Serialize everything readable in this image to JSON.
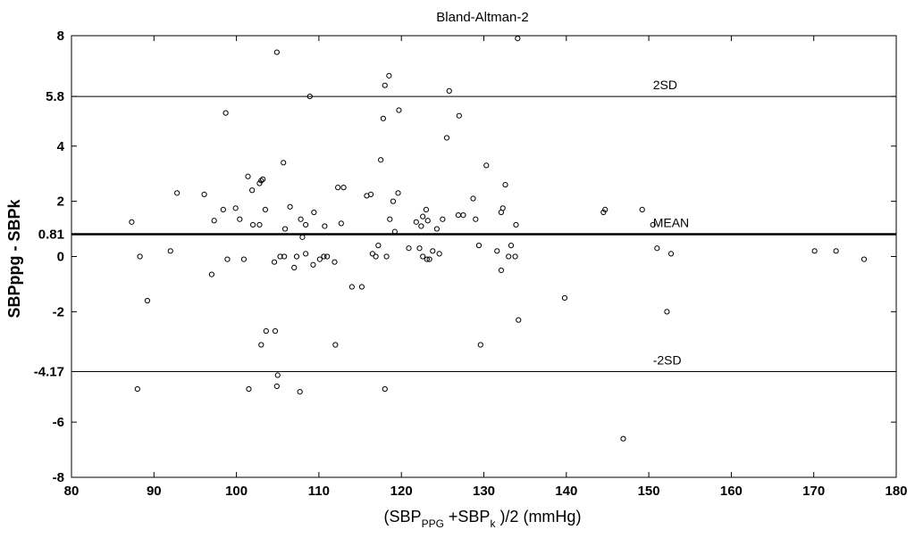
{
  "chart_data": {
    "type": "scatter",
    "title": "Bland-Altman-2",
    "ylabel": "SBPppg - SBPk",
    "xlabel": {
      "prefix": "(SBP",
      "sub1": "PPG",
      "middle": " +SBP",
      "sub2": "k",
      "suffix": " )/2  (mmHg)"
    },
    "xlim": [
      80,
      180
    ],
    "ylim": [
      -8,
      8
    ],
    "xticks": [
      80,
      90,
      100,
      110,
      120,
      130,
      140,
      150,
      160,
      170,
      180
    ],
    "yticks": [
      {
        "value": 8,
        "label": "8"
      },
      {
        "value": 5.8,
        "label": "5.8"
      },
      {
        "value": 4,
        "label": "4"
      },
      {
        "value": 2,
        "label": "2"
      },
      {
        "value": 0.81,
        "label": "0.81"
      },
      {
        "value": 0,
        "label": "0"
      },
      {
        "value": -2,
        "label": "-2"
      },
      {
        "value": -4.17,
        "label": "-4.17"
      },
      {
        "value": -6,
        "label": "-6"
      },
      {
        "value": -8,
        "label": "-8"
      }
    ],
    "reference_lines": [
      {
        "value": 5.8,
        "label": "2SD",
        "label_x": 150.5
      },
      {
        "value": 0.81,
        "label": "MEAN",
        "label_x": 150.5
      },
      {
        "value": -4.17,
        "label": "-2SD",
        "label_x": 150.5
      }
    ],
    "grid": false,
    "marker": "open-circle",
    "points": [
      [
        87.3,
        1.25
      ],
      [
        88.0,
        -4.8
      ],
      [
        88.3,
        0.0
      ],
      [
        89.2,
        -1.6
      ],
      [
        92.0,
        0.2
      ],
      [
        92.8,
        2.3
      ],
      [
        96.1,
        2.25
      ],
      [
        97.0,
        -0.65
      ],
      [
        97.3,
        1.3
      ],
      [
        98.4,
        1.7
      ],
      [
        98.7,
        5.2
      ],
      [
        98.9,
        -0.1
      ],
      [
        99.9,
        1.75
      ],
      [
        100.4,
        1.35
      ],
      [
        100.9,
        -0.1
      ],
      [
        101.4,
        2.9
      ],
      [
        101.5,
        -4.8
      ],
      [
        101.9,
        2.4
      ],
      [
        102.0,
        1.15
      ],
      [
        102.8,
        1.15
      ],
      [
        102.8,
        2.65
      ],
      [
        103.0,
        2.75
      ],
      [
        103.0,
        -3.2
      ],
      [
        103.2,
        2.8
      ],
      [
        103.5,
        1.7
      ],
      [
        103.6,
        -2.7
      ],
      [
        104.6,
        -0.2
      ],
      [
        104.7,
        -2.7
      ],
      [
        104.9,
        7.4
      ],
      [
        104.9,
        -4.7
      ],
      [
        105.0,
        -4.3
      ],
      [
        105.3,
        0.0
      ],
      [
        105.7,
        3.4
      ],
      [
        105.8,
        0.0
      ],
      [
        105.9,
        1.0
      ],
      [
        106.5,
        1.8
      ],
      [
        107.0,
        -0.4
      ],
      [
        107.3,
        0.0
      ],
      [
        107.7,
        -4.9
      ],
      [
        107.8,
        1.35
      ],
      [
        108.0,
        0.7
      ],
      [
        108.4,
        0.1
      ],
      [
        108.4,
        1.15
      ],
      [
        108.9,
        5.8
      ],
      [
        109.3,
        -0.3
      ],
      [
        109.4,
        1.6
      ],
      [
        110.1,
        -0.1
      ],
      [
        110.6,
        0.0
      ],
      [
        110.7,
        1.1
      ],
      [
        111.0,
        0.0
      ],
      [
        111.9,
        -0.2
      ],
      [
        112.0,
        -3.2
      ],
      [
        112.3,
        2.5
      ],
      [
        112.7,
        1.2
      ],
      [
        113.0,
        2.5
      ],
      [
        114.0,
        -1.1
      ],
      [
        115.2,
        -1.1
      ],
      [
        115.8,
        2.2
      ],
      [
        116.3,
        2.25
      ],
      [
        116.5,
        0.1
      ],
      [
        116.9,
        0.0
      ],
      [
        117.2,
        0.4
      ],
      [
        117.5,
        3.5
      ],
      [
        117.8,
        5.0
      ],
      [
        118.0,
        6.2
      ],
      [
        118.0,
        -4.8
      ],
      [
        118.2,
        0.0
      ],
      [
        118.5,
        6.55
      ],
      [
        118.6,
        1.35
      ],
      [
        119.0,
        2.0
      ],
      [
        119.2,
        0.9
      ],
      [
        119.6,
        2.3
      ],
      [
        119.7,
        5.3
      ],
      [
        120.9,
        0.3
      ],
      [
        121.8,
        1.25
      ],
      [
        122.2,
        0.3
      ],
      [
        122.4,
        1.1
      ],
      [
        122.6,
        1.45
      ],
      [
        122.6,
        0.0
      ],
      [
        123.0,
        1.7
      ],
      [
        123.1,
        -0.1
      ],
      [
        123.2,
        1.3
      ],
      [
        123.4,
        -0.1
      ],
      [
        123.8,
        0.2
      ],
      [
        124.3,
        1.0
      ],
      [
        124.6,
        0.1
      ],
      [
        125.0,
        1.35
      ],
      [
        125.5,
        4.3
      ],
      [
        125.8,
        6.0
      ],
      [
        126.9,
        1.5
      ],
      [
        127.0,
        5.1
      ],
      [
        127.5,
        1.5
      ],
      [
        128.7,
        2.1
      ],
      [
        129.0,
        1.35
      ],
      [
        129.4,
        0.4
      ],
      [
        129.6,
        -3.2
      ],
      [
        130.3,
        3.3
      ],
      [
        131.6,
        0.2
      ],
      [
        132.1,
        -0.5
      ],
      [
        132.1,
        1.6
      ],
      [
        132.3,
        1.75
      ],
      [
        132.6,
        2.6
      ],
      [
        133.0,
        0.0
      ],
      [
        133.3,
        0.4
      ],
      [
        133.8,
        0.0
      ],
      [
        133.9,
        1.15
      ],
      [
        134.1,
        7.9
      ],
      [
        134.2,
        -2.3
      ],
      [
        139.8,
        -1.5
      ],
      [
        144.5,
        1.6
      ],
      [
        144.7,
        1.7
      ],
      [
        146.9,
        -6.6
      ],
      [
        149.2,
        1.7
      ],
      [
        150.5,
        1.15
      ],
      [
        151.0,
        0.3
      ],
      [
        152.2,
        -2.0
      ],
      [
        152.7,
        0.1
      ],
      [
        170.1,
        0.2
      ],
      [
        172.7,
        0.2
      ],
      [
        176.1,
        -0.1
      ]
    ]
  }
}
